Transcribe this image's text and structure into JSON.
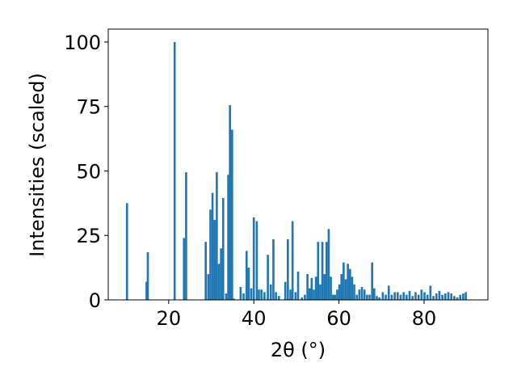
{
  "chart_data": {
    "type": "bar",
    "xlabel": "2θ (°)",
    "ylabel": "Intensities (scaled)",
    "xlim": [
      5.8,
      95.0
    ],
    "ylim": [
      0,
      105
    ],
    "xticks": [
      20,
      40,
      60,
      80
    ],
    "yticks": [
      0,
      25,
      50,
      75,
      100
    ],
    "grid": false,
    "bar_color": "#1f77b4",
    "bar_width": 0.5,
    "x": [
      10.2,
      14.8,
      15.1,
      21.4,
      23.6,
      24.1,
      28.7,
      29.3,
      29.8,
      30.3,
      30.8,
      31.3,
      31.8,
      32.3,
      32.8,
      33.5,
      34.0,
      34.4,
      34.9,
      35.3,
      36.9,
      37.6,
      38.3,
      38.8,
      39.4,
      40.0,
      40.7,
      41.2,
      41.8,
      42.5,
      43.3,
      44.0,
      44.6,
      45.2,
      45.9,
      47.4,
      48.0,
      48.6,
      49.1,
      49.8,
      50.4,
      51.3,
      52.0,
      52.6,
      53.1,
      53.6,
      54.1,
      54.6,
      55.1,
      55.6,
      56.1,
      56.6,
      57.1,
      57.6,
      58.1,
      58.6,
      59.1,
      59.6,
      60.1,
      60.6,
      61.1,
      61.6,
      62.1,
      62.6,
      63.1,
      63.6,
      64.2,
      64.8,
      65.4,
      66.0,
      66.6,
      67.2,
      67.8,
      68.3,
      68.9,
      69.5,
      70.3,
      71.0,
      71.7,
      72.4,
      73.1,
      73.8,
      74.5,
      75.2,
      75.9,
      76.6,
      77.3,
      78.0,
      78.7,
      79.4,
      80.1,
      80.8,
      81.5,
      82.2,
      82.9,
      83.6,
      84.3,
      85.0,
      85.7,
      86.4,
      87.1,
      87.8,
      88.5,
      89.2,
      89.8
    ],
    "values": [
      37.5,
      7,
      18.5,
      100,
      24,
      49.5,
      22.5,
      10,
      35,
      41.5,
      31,
      49.5,
      14,
      20,
      39.5,
      2.5,
      48.5,
      75.5,
      66,
      0.5,
      5,
      2.5,
      19,
      12.5,
      4.5,
      32,
      30.5,
      4,
      4,
      3,
      17.5,
      6,
      23.5,
      3,
      1.5,
      7,
      23.5,
      4,
      30.5,
      3,
      11,
      1,
      2,
      10,
      4.5,
      8.5,
      4,
      9,
      22.5,
      6,
      22.5,
      10,
      22.5,
      27.5,
      9,
      2,
      2,
      4,
      6,
      10,
      14.5,
      8,
      14,
      12,
      9,
      6,
      2,
      4,
      5,
      4,
      2,
      2,
      14.5,
      4.5,
      1.5,
      1,
      3,
      2,
      5.5,
      2,
      3,
      3,
      2,
      3,
      2,
      3.5,
      1.5,
      3,
      2,
      4,
      3,
      2,
      5.5,
      1.5,
      2.5,
      3.5,
      2,
      2.5,
      3,
      2.5,
      1.5,
      1,
      2,
      2.5,
      3
    ]
  }
}
